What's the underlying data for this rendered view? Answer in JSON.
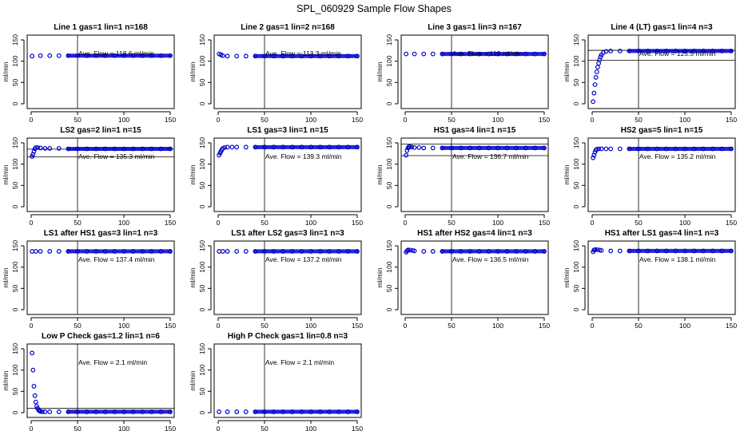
{
  "figure": {
    "title": "SPL_060929  Sample Flow Shapes"
  },
  "chart_data": [
    {
      "type": "scatter",
      "title": "Line 1 gas=1 lin=1 n=168",
      "ylabel": "ml/min",
      "annotation": "Ave. Flow =  118.6  ml/min",
      "xlim": [
        0,
        150
      ],
      "ylim": [
        0,
        150
      ],
      "vline": 50,
      "hlines": [],
      "x": [
        1,
        10,
        20,
        30,
        40,
        50,
        60,
        70,
        80,
        90,
        100,
        110,
        120,
        130,
        140,
        150
      ],
      "y": [
        112,
        113,
        113,
        113,
        113,
        113,
        113,
        113,
        113,
        113,
        113,
        113,
        113,
        113,
        113,
        113
      ]
    },
    {
      "type": "scatter",
      "title": "Line 2 gas=1 lin=2 n=168",
      "ylabel": "ml/min",
      "annotation": "Ave. Flow =  113.3  ml/min",
      "xlim": [
        0,
        150
      ],
      "ylim": [
        0,
        150
      ],
      "vline": 50,
      "hlines": [],
      "x": [
        1,
        3,
        5,
        10,
        20,
        30,
        40,
        50,
        60,
        70,
        80,
        90,
        100,
        110,
        120,
        130,
        140,
        150
      ],
      "y": [
        117,
        115,
        113,
        112,
        112,
        112,
        112,
        112,
        112,
        112,
        112,
        112,
        112,
        112,
        112,
        112,
        112,
        112
      ]
    },
    {
      "type": "scatter",
      "title": "Line 3 gas=1 lin=3 n=167",
      "ylabel": "ml/min",
      "annotation": "Ave. Flow =  119  ml/min",
      "xlim": [
        0,
        150
      ],
      "ylim": [
        0,
        150
      ],
      "vline": 50,
      "hlines": [],
      "x": [
        1,
        10,
        20,
        30,
        40,
        50,
        60,
        70,
        80,
        90,
        100,
        110,
        120,
        130,
        140,
        150
      ],
      "y": [
        117,
        117,
        117,
        117,
        117,
        117,
        117,
        117,
        117,
        117,
        117,
        117,
        117,
        117,
        117,
        117
      ]
    },
    {
      "type": "scatter",
      "title": "Line 4 (LT) gas=1 lin=4 n=3",
      "ylabel": "ml/min",
      "annotation": "Ave. Flow =  125.5  ml/min",
      "xlim": [
        0,
        150
      ],
      "ylim": [
        0,
        150
      ],
      "vline": 50,
      "hlines": [
        125.5,
        102
      ],
      "x": [
        1,
        2,
        3,
        4,
        5,
        6,
        7,
        8,
        9,
        10,
        12,
        15,
        20,
        30,
        40,
        50,
        60,
        70,
        80,
        90,
        100,
        110,
        120,
        130,
        140,
        150
      ],
      "y": [
        5,
        25,
        45,
        62,
        75,
        86,
        95,
        103,
        110,
        115,
        120,
        123,
        124,
        124,
        124,
        124,
        124,
        124,
        124,
        124,
        124,
        124,
        124,
        124,
        124,
        124
      ]
    },
    {
      "type": "scatter",
      "title": "LS2 gas=2 lin=1 n=15",
      "ylabel": "ml/min",
      "annotation": "Ave. Flow =  135.3  ml/min",
      "xlim": [
        0,
        150
      ],
      "ylim": [
        0,
        150
      ],
      "vline": 50,
      "hlines": [
        135.3,
        117
      ],
      "x": [
        1,
        2,
        3,
        4,
        5,
        7,
        10,
        15,
        20,
        30,
        40,
        50,
        60,
        70,
        80,
        90,
        100,
        110,
        120,
        130,
        140,
        150
      ],
      "y": [
        118,
        123,
        130,
        136,
        139,
        139,
        138,
        137,
        137,
        137,
        136,
        136,
        136,
        136,
        136,
        136,
        136,
        136,
        136,
        136,
        136,
        136
      ]
    },
    {
      "type": "scatter",
      "title": "LS1 gas=3 lin=1 n=15",
      "ylabel": "ml/min",
      "annotation": "Ave. Flow =  139.3  ml/min",
      "xlim": [
        0,
        150
      ],
      "ylim": [
        0,
        150
      ],
      "vline": 50,
      "hlines": [],
      "x": [
        1,
        2,
        3,
        4,
        5,
        7,
        10,
        15,
        20,
        30,
        40,
        50,
        60,
        70,
        80,
        90,
        100,
        110,
        120,
        130,
        140,
        150
      ],
      "y": [
        121,
        126,
        130,
        134,
        137,
        139,
        140,
        140,
        140,
        140,
        140,
        140,
        140,
        140,
        140,
        140,
        140,
        140,
        140,
        140,
        140,
        140
      ]
    },
    {
      "type": "scatter",
      "title": "HS1 gas=4 lin=1 n=15",
      "ylabel": "ml/min",
      "annotation": "Ave. Flow =  136.7  ml/min",
      "xlim": [
        0,
        150
      ],
      "ylim": [
        0,
        150
      ],
      "vline": 50,
      "hlines": [
        147,
        120
      ],
      "x": [
        1,
        2,
        3,
        4,
        5,
        7,
        10,
        15,
        20,
        30,
        40,
        50,
        60,
        70,
        80,
        90,
        100,
        110,
        120,
        130,
        140,
        150
      ],
      "y": [
        121,
        132,
        138,
        141,
        141,
        140,
        139,
        139,
        138,
        138,
        138,
        138,
        138,
        138,
        138,
        138,
        138,
        138,
        138,
        138,
        138,
        138
      ]
    },
    {
      "type": "scatter",
      "title": "HS2 gas=5 lin=1 n=15",
      "ylabel": "ml/min",
      "annotation": "Ave. Flow =  135.2  ml/min",
      "xlim": [
        0,
        150
      ],
      "ylim": [
        0,
        150
      ],
      "vline": 50,
      "hlines": [],
      "x": [
        1,
        2,
        3,
        4,
        5,
        7,
        10,
        15,
        20,
        30,
        40,
        50,
        60,
        70,
        80,
        90,
        100,
        110,
        120,
        130,
        140,
        150
      ],
      "y": [
        115,
        121,
        128,
        133,
        135,
        136,
        136,
        136,
        136,
        136,
        136,
        136,
        136,
        136,
        136,
        136,
        136,
        136,
        136,
        136,
        136,
        136
      ]
    },
    {
      "type": "scatter",
      "title": "LS1 after HS1 gas=3 lin=1 n=3",
      "ylabel": "ml/min",
      "annotation": "Ave. Flow =  137.4  ml/min",
      "xlim": [
        0,
        150
      ],
      "ylim": [
        0,
        150
      ],
      "vline": 50,
      "hlines": [],
      "x": [
        1,
        5,
        10,
        20,
        30,
        40,
        50,
        60,
        70,
        80,
        90,
        100,
        110,
        120,
        130,
        140,
        150
      ],
      "y": [
        137,
        137,
        137,
        137,
        137,
        137,
        137,
        137,
        137,
        137,
        137,
        137,
        137,
        137,
        137,
        137,
        137
      ]
    },
    {
      "type": "scatter",
      "title": "LS1 after LS2 gas=3 lin=1 n=3",
      "ylabel": "ml/min",
      "annotation": "Ave. Flow =  137.2  ml/min",
      "xlim": [
        0,
        150
      ],
      "ylim": [
        0,
        150
      ],
      "vline": 50,
      "hlines": [],
      "x": [
        1,
        5,
        10,
        20,
        30,
        40,
        50,
        60,
        70,
        80,
        90,
        100,
        110,
        120,
        130,
        140,
        150
      ],
      "y": [
        137,
        137,
        137,
        137,
        137,
        137,
        137,
        137,
        137,
        137,
        137,
        137,
        137,
        137,
        137,
        137,
        137
      ]
    },
    {
      "type": "scatter",
      "title": "HS1 after HS2 gas=4 lin=1 n=3",
      "ylabel": "ml/min",
      "annotation": "Ave. Flow =  136.5  ml/min",
      "xlim": [
        0,
        150
      ],
      "ylim": [
        0,
        150
      ],
      "vline": 50,
      "hlines": [],
      "x": [
        1,
        2,
        3,
        5,
        8,
        10,
        20,
        30,
        40,
        50,
        60,
        70,
        80,
        90,
        100,
        110,
        120,
        130,
        140,
        150
      ],
      "y": [
        135,
        138,
        140,
        140,
        139,
        138,
        137,
        137,
        137,
        137,
        137,
        137,
        137,
        137,
        137,
        137,
        137,
        137,
        137,
        137
      ]
    },
    {
      "type": "scatter",
      "title": "HS1 after LS1 gas=4 lin=1 n=3",
      "ylabel": "ml/min",
      "annotation": "Ave. Flow =  138.1  ml/min",
      "xlim": [
        0,
        150
      ],
      "ylim": [
        0,
        150
      ],
      "vline": 50,
      "hlines": [],
      "x": [
        1,
        2,
        3,
        5,
        8,
        10,
        20,
        30,
        40,
        50,
        60,
        70,
        80,
        90,
        100,
        110,
        120,
        130,
        140,
        150
      ],
      "y": [
        136,
        140,
        141,
        141,
        140,
        139,
        138,
        138,
        138,
        138,
        138,
        138,
        138,
        138,
        138,
        138,
        138,
        138,
        138,
        138
      ]
    },
    {
      "type": "scatter",
      "title": "Low P Check gas=1.2 lin=1 n=6",
      "ylabel": "ml/min",
      "annotation": "Ave. Flow =  2.1  ml/min",
      "xlim": [
        0,
        150
      ],
      "ylim": [
        0,
        150
      ],
      "vline": 50,
      "hlines": [
        10
      ],
      "x": [
        1,
        2,
        3,
        4,
        5,
        6,
        7,
        8,
        9,
        10,
        12,
        15,
        20,
        30,
        40,
        50,
        60,
        70,
        80,
        90,
        100,
        110,
        120,
        130,
        140,
        150
      ],
      "y": [
        140,
        100,
        62,
        40,
        25,
        15,
        10,
        6,
        4,
        3,
        2,
        2,
        2,
        2,
        2,
        2,
        2,
        2,
        2,
        2,
        2,
        2,
        2,
        2,
        2,
        2
      ]
    },
    {
      "type": "scatter",
      "title": "High P Check gas=1 lin=0.8 n=3",
      "ylabel": "ml/min",
      "annotation": "Ave. Flow =  2.1  ml/min",
      "xlim": [
        0,
        150
      ],
      "ylim": [
        0,
        150
      ],
      "vline": 50,
      "hlines": [],
      "x": [
        1,
        10,
        20,
        30,
        40,
        50,
        60,
        70,
        80,
        90,
        100,
        110,
        120,
        130,
        140,
        150
      ],
      "y": [
        2,
        2,
        2,
        2,
        2,
        2,
        2,
        2,
        2,
        2,
        2,
        2,
        2,
        2,
        2,
        2
      ]
    }
  ],
  "axes": {
    "x_ticks": [
      0,
      50,
      100,
      150
    ],
    "x_tick_labels": [
      "0",
      "50",
      "100",
      "150"
    ],
    "y_ticks": [
      0,
      50,
      100,
      150
    ],
    "y_tick_labels": [
      "0",
      "50",
      "100",
      "150"
    ]
  },
  "style": {
    "point_color": "#0000cc",
    "line_color": "#000000"
  }
}
